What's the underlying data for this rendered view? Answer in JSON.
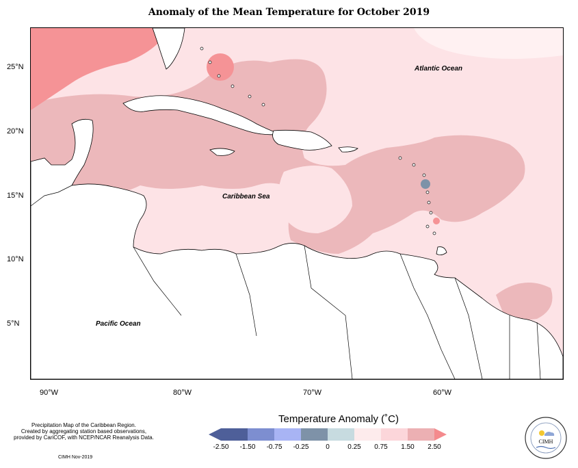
{
  "title": "Anomaly of the Mean Temperature for October 2019",
  "ocean_labels": {
    "atlantic": "Atlantic Ocean",
    "caribbean": "Caribbean Sea",
    "pacific": "Pacific Ocean"
  },
  "lat_labels": [
    "25°N",
    "20°N",
    "15°N",
    "10°N",
    "5°N"
  ],
  "lon_labels": [
    "90°W",
    "80°W",
    "70°W",
    "60°W"
  ],
  "legend": {
    "title": "Temperature Anomaly (˚C)",
    "ticks": [
      "-2.50",
      "-1.50",
      "-0.75",
      "-0.25",
      "0",
      "0.25",
      "0.75",
      "1.50",
      "2.50"
    ],
    "colors": [
      "#4e5f99",
      "#7d8ed0",
      "#a8b4f4",
      "#7e92a8",
      "#c7dbe0",
      "#fdebec",
      "#fcd6da",
      "#ecb0b3",
      "#f48a8d"
    ]
  },
  "credit": {
    "line1": "Precipitation Map of the Caribbean Region.",
    "line2": "Created by aggregating station based observations,",
    "line3": "provided by CariCOF, with NCEP/NCAR Reanalysis Data.",
    "date": "CIMH Nov-2019"
  },
  "logo": {
    "text": "CIMH"
  }
}
